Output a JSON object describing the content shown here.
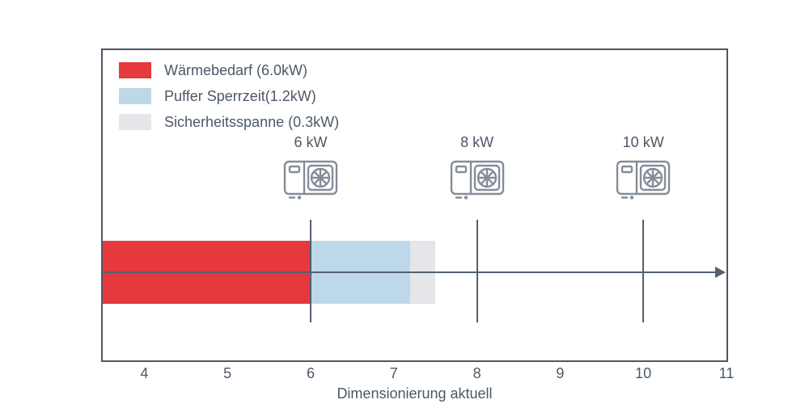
{
  "chart_data": {
    "type": "bar",
    "orientation": "horizontal",
    "title": "",
    "xlabel": "Dimensionierung aktuell",
    "ylabel": "",
    "xlim": [
      3.5,
      11.0
    ],
    "x_ticks": [
      "4",
      "5",
      "6",
      "7",
      "8",
      "9",
      "10",
      "11"
    ],
    "grid": false,
    "legend_position": "upper left",
    "segments": [
      {
        "name": "Wärmebedarf (6.0kW)",
        "value_kw": 6.0,
        "from": 3.5,
        "to": 6.0,
        "color": "#e5393e"
      },
      {
        "name": "Puffer Sperrzeit(1.2kW)",
        "value_kw": 1.2,
        "from": 6.0,
        "to": 7.2,
        "color": "#bcd8e9"
      },
      {
        "name": "Sicherheitsspanne (0.3kW)",
        "value_kw": 0.3,
        "from": 7.2,
        "to": 7.5,
        "color": "#e4e6e9"
      }
    ],
    "markers": [
      {
        "label": "6 kW",
        "x": 6
      },
      {
        "label": "8 kW",
        "x": 8
      },
      {
        "label": "10 kW",
        "x": 10
      }
    ]
  },
  "colors": {
    "axis": "#4c5866",
    "arrow": "#53606e",
    "icon": "#848d97"
  }
}
